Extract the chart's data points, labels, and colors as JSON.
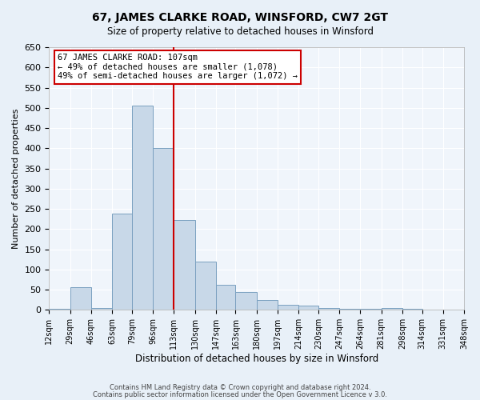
{
  "title": "67, JAMES CLARKE ROAD, WINSFORD, CW7 2GT",
  "subtitle": "Size of property relative to detached houses in Winsford",
  "xlabel": "Distribution of detached houses by size in Winsford",
  "ylabel": "Number of detached properties",
  "bin_edges": [
    12,
    29,
    46,
    63,
    79,
    96,
    113,
    130,
    147,
    163,
    180,
    197,
    214,
    230,
    247,
    264,
    281,
    298,
    314,
    331,
    348
  ],
  "counts": [
    2,
    57,
    4,
    238,
    505,
    400,
    222,
    120,
    62,
    45,
    24,
    13,
    10,
    4,
    3,
    2,
    5,
    2,
    1,
    1
  ],
  "bar_color": "#c8d8e8",
  "bar_edge_color": "#7aa0c0",
  "vline_x": 113,
  "vline_color": "#cc0000",
  "annotation_line1": "67 JAMES CLARKE ROAD: 107sqm",
  "annotation_line2": "← 49% of detached houses are smaller (1,078)",
  "annotation_line3": "49% of semi-detached houses are larger (1,072) →",
  "annotation_box_color": "#cc0000",
  "ylim": [
    0,
    650
  ],
  "yticks": [
    0,
    50,
    100,
    150,
    200,
    250,
    300,
    350,
    400,
    450,
    500,
    550,
    600,
    650
  ],
  "tick_labels": [
    "12sqm",
    "29sqm",
    "46sqm",
    "63sqm",
    "79sqm",
    "96sqm",
    "113sqm",
    "130sqm",
    "147sqm",
    "163sqm",
    "180sqm",
    "197sqm",
    "214sqm",
    "230sqm",
    "247sqm",
    "264sqm",
    "281sqm",
    "298sqm",
    "314sqm",
    "331sqm",
    "348sqm"
  ],
  "footer_line1": "Contains HM Land Registry data © Crown copyright and database right 2024.",
  "footer_line2": "Contains public sector information licensed under the Open Government Licence v 3.0.",
  "bg_color": "#e8f0f8",
  "plot_bg_color": "#f0f5fb"
}
